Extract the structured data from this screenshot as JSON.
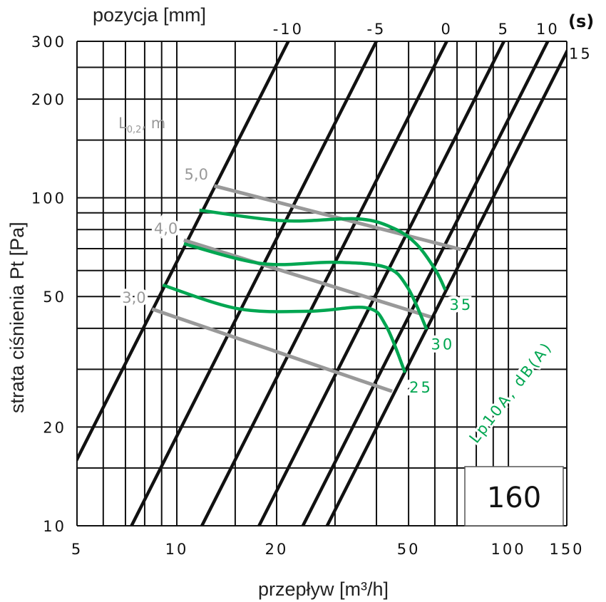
{
  "chart_data": {
    "type": "line",
    "title": "160",
    "xlabel": "przepływ [m³/h]",
    "ylabel": "strata ciśnienia Pt [Pa]",
    "x_scale": "log",
    "y_scale": "log",
    "xlim": [
      5,
      150
    ],
    "ylim": [
      10,
      300
    ],
    "x_ticks": [
      5,
      10,
      20,
      50,
      100,
      150
    ],
    "x_tick_labels": [
      "5",
      "10",
      "20",
      "50",
      "100",
      "150"
    ],
    "y_ticks": [
      10,
      20,
      50,
      100,
      200,
      300
    ],
    "y_tick_labels": [
      "10",
      "20",
      "50",
      "100",
      "200",
      "300"
    ],
    "x_grid": [
      5,
      6,
      7,
      8,
      9,
      10,
      15,
      20,
      30,
      40,
      50,
      60,
      70,
      80,
      90,
      100,
      150
    ],
    "y_grid": [
      10,
      15,
      20,
      30,
      40,
      50,
      60,
      70,
      80,
      90,
      100,
      150,
      200,
      250,
      300
    ],
    "grid": true,
    "top_axis_label": "pozycja [mm]",
    "top_axis_unit": "(s)",
    "position_lines": {
      "relation": "P = 10 * (Q / Q10)^2",
      "series": [
        {
          "name": "-10",
          "q_at_10pa": 3.96
        },
        {
          "name": "-5",
          "q_at_10pa": 7.3
        },
        {
          "name": "0",
          "q_at_10pa": 11.9
        },
        {
          "name": "5",
          "q_at_10pa": 17.7
        },
        {
          "name": "10",
          "q_at_10pa": 24.0
        },
        {
          "name": "15",
          "q_at_10pa": 28.4
        }
      ]
    },
    "throw_lines": {
      "legend": "L",
      "legend_sub": "0,2",
      "legend_unit": ", m",
      "series": [
        {
          "name": "5,0",
          "points": [
            [
              12.97,
              108.7
            ],
            [
              71.9,
              69.6
            ]
          ]
        },
        {
          "name": "4,0",
          "points": [
            [
              10.5,
              74.3
            ],
            [
              58.4,
              43.3
            ]
          ]
        },
        {
          "name": "3,0",
          "points": [
            [
              8.42,
              45.8
            ],
            [
              44.6,
              25.7
            ]
          ]
        }
      ]
    },
    "noise_curves": {
      "legend": "Lp10A, dB(A)",
      "series": [
        {
          "name": "35",
          "points": [
            [
              11.7,
              91.7
            ],
            [
              21.0,
              85.1
            ],
            [
              35.0,
              86.3
            ],
            [
              44.9,
              80.9
            ],
            [
              52.9,
              72.1
            ],
            [
              60.4,
              60.0
            ],
            [
              64.5,
              52.4
            ]
          ]
        },
        {
          "name": "30",
          "points": [
            [
              10.5,
              72.4
            ],
            [
              18.1,
              63.0
            ],
            [
              29.7,
              63.6
            ],
            [
              42.7,
              61.4
            ],
            [
              49.6,
              53.4
            ],
            [
              56.7,
              39.7
            ]
          ]
        },
        {
          "name": "25",
          "points": [
            [
              9.07,
              54.2
            ],
            [
              15.3,
              45.9
            ],
            [
              25.1,
              45.1
            ],
            [
              37.3,
              46.2
            ],
            [
              42.7,
              40.8
            ],
            [
              48.8,
              29.3
            ]
          ]
        }
      ]
    },
    "colors": {
      "grid": "#111111",
      "position": "#111111",
      "throw": "#999999",
      "noise": "#00a651"
    }
  }
}
